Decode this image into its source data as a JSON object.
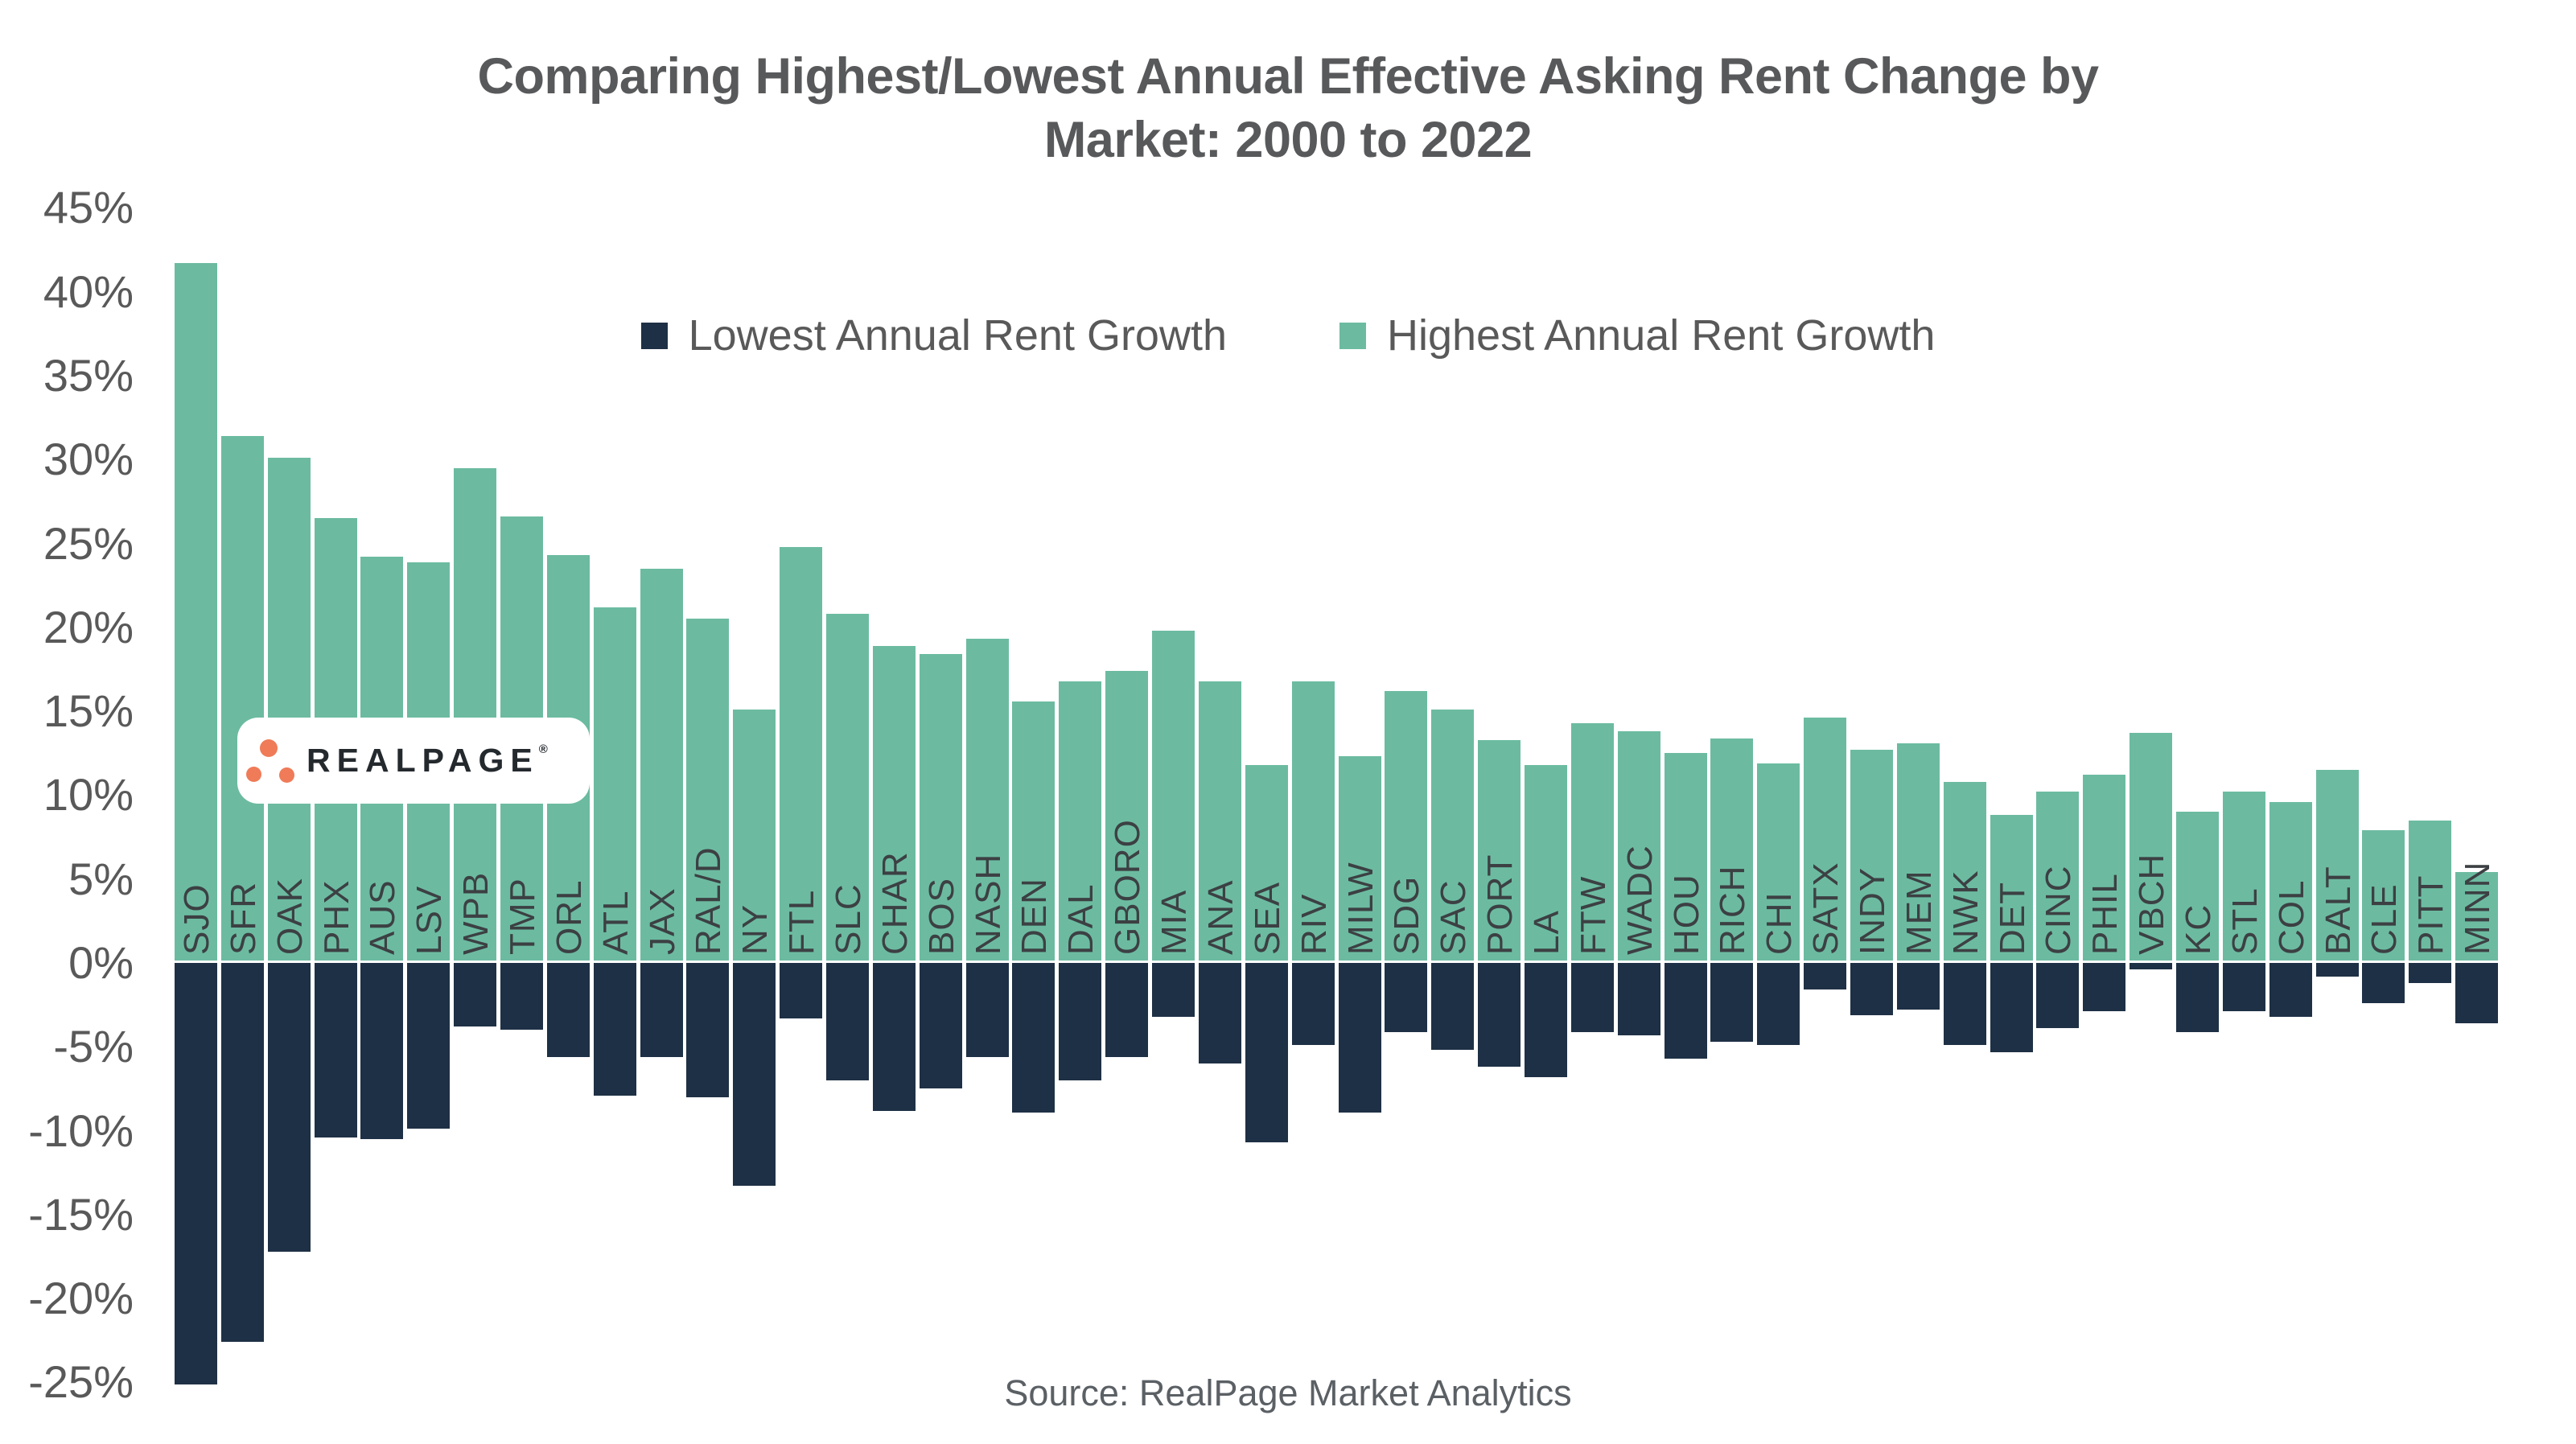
{
  "title": {
    "line1": "Comparing Highest/Lowest Annual Effective Asking Rent Change by",
    "line2": "Market: 2000 to 2022"
  },
  "legend": [
    {
      "label": "Lowest Annual Rent Growth",
      "color": "#1E3045"
    },
    {
      "label": "Highest Annual Rent Growth",
      "color": "#6CBBA1"
    }
  ],
  "source": "Source: RealPage Market Analytics",
  "logo": {
    "text": "REALPAGE",
    "reg": "®",
    "dot_color": "#EF7B58"
  },
  "colors": {
    "teal_bar": "#6CBBA1",
    "navy_bar": "#1E3045",
    "title_gray": "#58595B",
    "axis_gray": "#595959",
    "xlabel_gray": "#3C4043",
    "logo_orange": "#EF7B58",
    "background": "#FFFFFF"
  },
  "chart_data": {
    "type": "bar",
    "title": "Comparing Highest/Lowest Annual Effective Asking Rent Change by Market: 2000 to 2022",
    "xlabel": "",
    "ylabel": "",
    "ylim": [
      -25,
      45
    ],
    "ytick_step": 5,
    "yticks": [
      "45%",
      "40%",
      "35%",
      "30%",
      "25%",
      "20%",
      "15%",
      "10%",
      "5%",
      "0%",
      "-5%",
      "-10%",
      "-15%",
      "-20%",
      "-25%"
    ],
    "grid": false,
    "legend_position": "top-center-inside",
    "categories": [
      "SJO",
      "SFR",
      "OAK",
      "PHX",
      "AUS",
      "LSV",
      "WPB",
      "TMP",
      "ORL",
      "ATL",
      "JAX",
      "RAL/D",
      "NY",
      "FTL",
      "SLC",
      "CHAR",
      "BOS",
      "NASH",
      "DEN",
      "DAL",
      "GBORO",
      "MIA",
      "ANA",
      "SEA",
      "RIV",
      "MILW",
      "SDG",
      "SAC",
      "PORT",
      "LA",
      "FTW",
      "WADC",
      "HOU",
      "RICH",
      "CHI",
      "SATX",
      "INDY",
      "MEM",
      "NWK",
      "DET",
      "CINC",
      "PHIL",
      "VBCH",
      "KC",
      "STL",
      "COL",
      "BALT",
      "CLE",
      "PITT",
      "MINN"
    ],
    "series": [
      {
        "name": "Lowest Annual Rent Growth",
        "color": "#1E3045",
        "values": [
          -25.1,
          -22.6,
          -17.2,
          -10.4,
          -10.5,
          -9.9,
          -3.8,
          -4.0,
          -5.6,
          -7.9,
          -5.6,
          -8.0,
          -13.3,
          -3.3,
          -7.0,
          -8.8,
          -7.5,
          -5.6,
          -8.9,
          -7.0,
          -5.6,
          -3.2,
          -6.0,
          -10.7,
          -4.9,
          -8.9,
          -4.1,
          -5.2,
          -6.2,
          -6.8,
          -4.1,
          -4.3,
          -5.7,
          -4.7,
          -4.9,
          -1.6,
          -3.1,
          -2.8,
          -4.9,
          -5.3,
          -3.9,
          -2.9,
          -0.4,
          -4.1,
          -2.9,
          -3.2,
          -0.8,
          -2.4,
          -1.2,
          -3.6
        ]
      },
      {
        "name": "Highest Annual Rent Growth",
        "color": "#6CBBA1",
        "values": [
          41.7,
          31.4,
          30.1,
          26.5,
          24.2,
          23.9,
          29.5,
          26.6,
          24.3,
          21.2,
          23.5,
          20.5,
          15.1,
          24.8,
          20.8,
          18.9,
          18.4,
          19.3,
          15.6,
          16.8,
          17.4,
          19.8,
          16.8,
          11.8,
          16.8,
          12.3,
          16.2,
          15.1,
          13.3,
          11.8,
          14.3,
          13.8,
          12.5,
          13.4,
          11.9,
          14.6,
          12.7,
          13.1,
          10.8,
          8.8,
          10.2,
          11.2,
          13.7,
          9.0,
          10.2,
          9.6,
          11.5,
          7.9,
          8.5,
          5.4
        ]
      }
    ]
  }
}
